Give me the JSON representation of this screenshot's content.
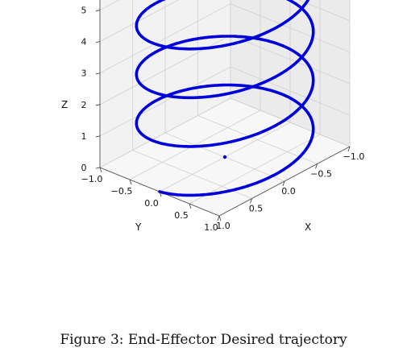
{
  "caption": "Figure 3:  End-Effector Desired trajectory",
  "chart_data": {
    "type": "line3d",
    "title": "",
    "xlabel": "X",
    "ylabel": "Y",
    "zlabel": "Z",
    "xlim": [
      -1.0,
      1.0
    ],
    "ylim": [
      -1.0,
      1.0
    ],
    "zlim": [
      0,
      5.5
    ],
    "x_ticks": [
      "1.0",
      "0.5",
      "0.0",
      "−0.5",
      "−1.0"
    ],
    "y_ticks": [
      "−1.0",
      "−0.5",
      "0.0",
      "0.5",
      "1.0"
    ],
    "z_ticks": [
      "0",
      "1",
      "2",
      "3",
      "4",
      "5"
    ],
    "grid": true,
    "series": [
      {
        "kind": "helix",
        "color": "#0000dd",
        "radius": 1.0,
        "z_start": 0.0,
        "z_end": 5.5,
        "turns": 3.55,
        "start_angle_deg": 0
      },
      {
        "kind": "point",
        "color": "#0000dd",
        "x": 0.0,
        "y": 0.0,
        "z": 0.0
      }
    ]
  }
}
